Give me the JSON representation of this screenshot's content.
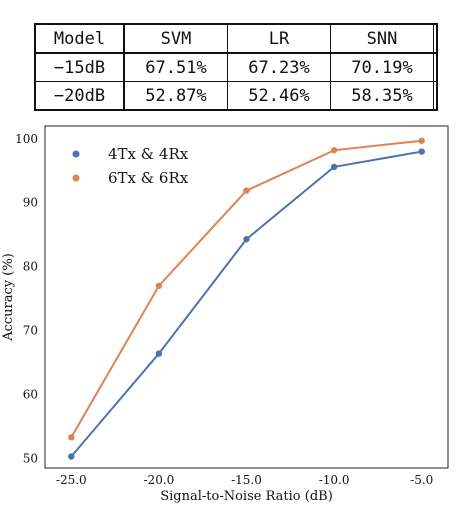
{
  "table": {
    "header": [
      "Model",
      "SVM",
      "LR",
      "SNN"
    ],
    "rows": [
      [
        "−15dB",
        "67.51%",
        "67.23%",
        "70.19%"
      ],
      [
        "−20dB",
        "52.87%",
        "52.46%",
        "58.35%"
      ]
    ]
  },
  "chart_data": {
    "type": "line",
    "title": "",
    "xlabel": "Signal-to-Noise Ratio (dB)",
    "ylabel": "Accuracy (%)",
    "x": [
      -25.0,
      -20.0,
      -15.0,
      -10.0,
      -5.0
    ],
    "x_tick_labels": [
      "-25.0",
      "-20.0",
      "-15.0",
      "-10.0",
      "-5.0"
    ],
    "y_ticks": [
      50,
      60,
      70,
      80,
      90,
      100
    ],
    "xlim": [
      -26.5,
      -3.5
    ],
    "ylim": [
      48.5,
      102
    ],
    "grid": false,
    "legend_position": "top-left",
    "series": [
      {
        "name": "4Tx & 4Rx",
        "color": "#4c72b0",
        "values": [
          50.3,
          66.4,
          84.3,
          95.6,
          98.0
        ]
      },
      {
        "name": "6Tx & 6Rx",
        "color": "#dd8452",
        "values": [
          53.3,
          77.0,
          91.9,
          98.2,
          99.7
        ]
      }
    ]
  }
}
